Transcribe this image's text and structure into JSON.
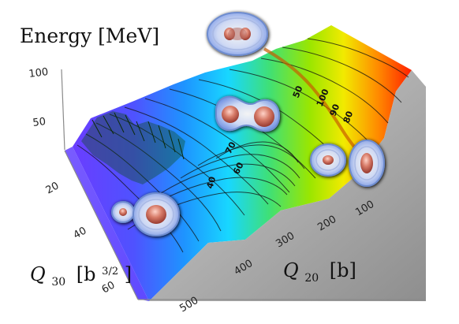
{
  "chart_data": {
    "type": "surface",
    "title": "",
    "axes": {
      "z": {
        "label": "Energy [MeV]",
        "ticks": [
          50,
          100
        ]
      },
      "q30": {
        "label_main": "Q",
        "label_sub": "30",
        "label_unit": "[b",
        "label_unit_exp": "3/2",
        "label_unit_close": "]",
        "ticks": [
          20,
          40,
          60
        ]
      },
      "q20": {
        "label_main": "Q",
        "label_sub": "20",
        "label_unit": "[b]",
        "ticks": [
          100,
          200,
          300,
          400,
          500
        ]
      }
    },
    "contour_labels": [
      "50",
      "40",
      "70",
      "60",
      "100",
      "90",
      "80"
    ],
    "colormap": [
      "#5b3cff",
      "#3f7cff",
      "#20c8ff",
      "#29d88d",
      "#86e600",
      "#f2ec00",
      "#ff8d00",
      "#ff1d00"
    ]
  }
}
